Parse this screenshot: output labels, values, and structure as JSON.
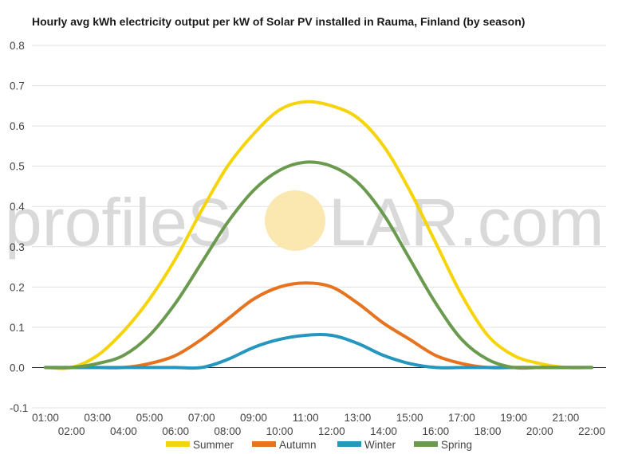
{
  "watermark": {
    "prefix": "profileS",
    "suffix": "LAR.com",
    "sun_color": "#fbe8b0"
  },
  "chart_data": {
    "type": "line",
    "title": "Hourly avg kWh electricity output per kW of Solar PV installed in Rauma, Finland (by season)",
    "xlabel": "",
    "ylabel": "",
    "ylim": [
      -0.1,
      0.8
    ],
    "yticks": [
      "-0.1",
      "0.0",
      "0.1",
      "0.2",
      "0.3",
      "0.4",
      "0.5",
      "0.6",
      "0.7",
      "0.8"
    ],
    "x": [
      "01:00",
      "02:00",
      "03:00",
      "04:00",
      "05:00",
      "06:00",
      "07:00",
      "08:00",
      "09:00",
      "10:00",
      "11:00",
      "12:00",
      "13:00",
      "14:00",
      "15:00",
      "16:00",
      "17:00",
      "18:00",
      "19:00",
      "20:00",
      "21:00",
      "22:00"
    ],
    "grid": true,
    "legend_position": "bottom",
    "series": [
      {
        "name": "Summer",
        "color": "#f5d40c",
        "values": [
          0.0,
          0.0,
          0.03,
          0.09,
          0.17,
          0.27,
          0.39,
          0.5,
          0.58,
          0.64,
          0.66,
          0.65,
          0.62,
          0.55,
          0.44,
          0.31,
          0.18,
          0.08,
          0.03,
          0.01,
          0.0,
          0.0
        ]
      },
      {
        "name": "Autumn",
        "color": "#e6731f",
        "values": [
          0.0,
          0.0,
          0.0,
          0.0,
          0.01,
          0.03,
          0.07,
          0.12,
          0.17,
          0.2,
          0.21,
          0.2,
          0.16,
          0.11,
          0.07,
          0.03,
          0.01,
          0.0,
          0.0,
          0.0,
          0.0,
          0.0
        ]
      },
      {
        "name": "Winter",
        "color": "#2596be",
        "values": [
          0.0,
          0.0,
          0.0,
          0.0,
          0.0,
          0.0,
          0.0,
          0.02,
          0.05,
          0.07,
          0.08,
          0.08,
          0.06,
          0.03,
          0.01,
          0.0,
          0.0,
          0.0,
          0.0,
          0.0,
          0.0,
          0.0
        ]
      },
      {
        "name": "Spring",
        "color": "#6a9a4d",
        "values": [
          0.0,
          0.0,
          0.01,
          0.03,
          0.08,
          0.16,
          0.26,
          0.36,
          0.44,
          0.49,
          0.51,
          0.5,
          0.46,
          0.38,
          0.27,
          0.16,
          0.07,
          0.02,
          0.0,
          0.0,
          0.0,
          0.0
        ]
      }
    ]
  }
}
